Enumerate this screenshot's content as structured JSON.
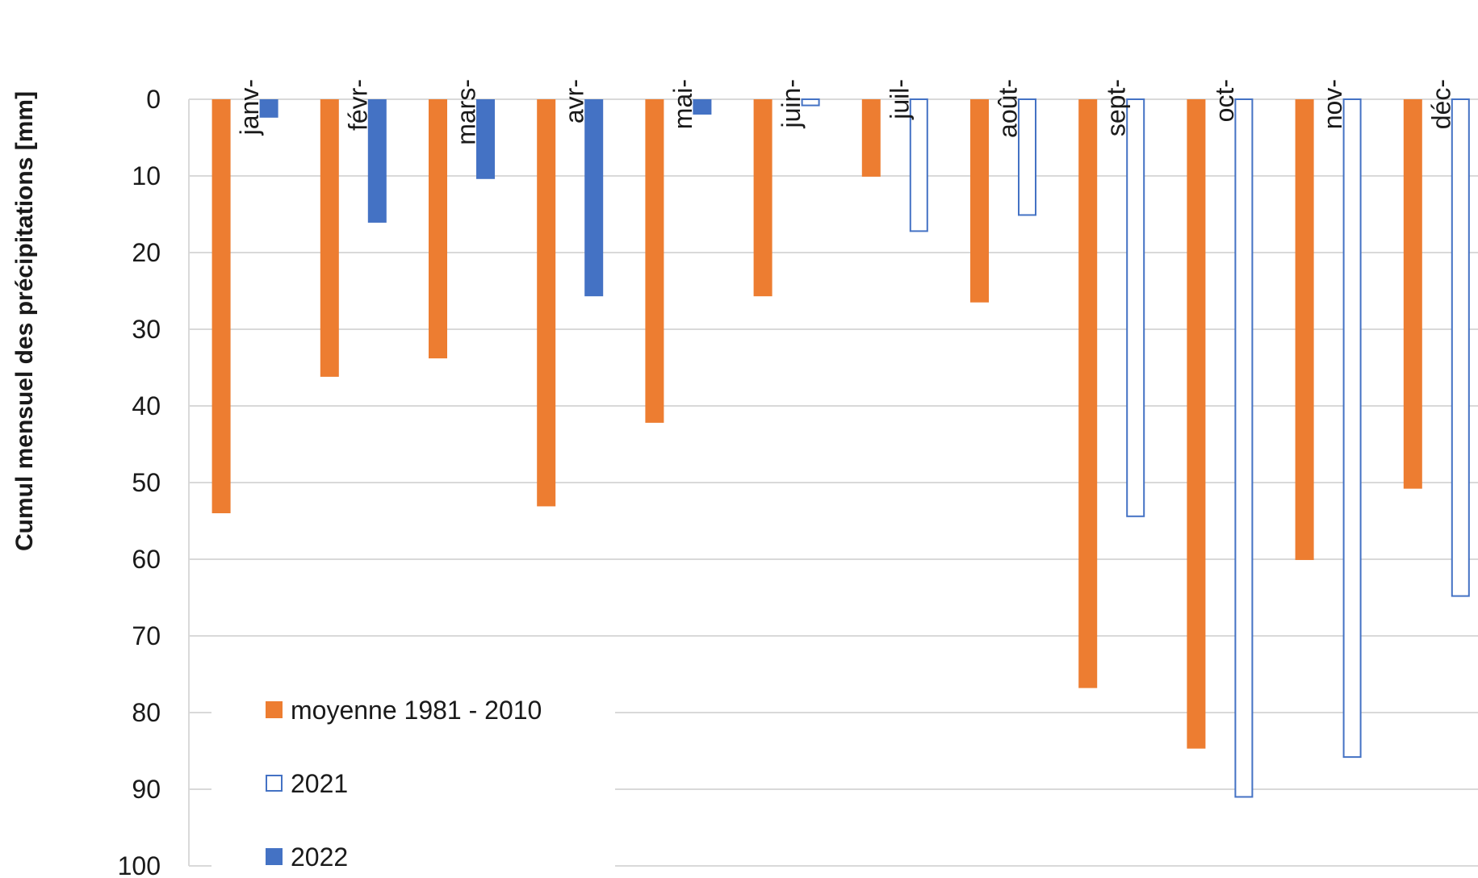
{
  "chart_data": {
    "type": "bar",
    "orientation": "vertical-inverted",
    "ylabel": "Cumul mensuel des précipitations [mm]",
    "xlabel": "",
    "title": "",
    "ylim": [
      0,
      100
    ],
    "y_ticks": [
      "0",
      "10",
      "20",
      "30",
      "40",
      "50",
      "60",
      "70",
      "80",
      "90",
      "100"
    ],
    "y_axis_inverted": true,
    "x_axis_position": "top",
    "grid": true,
    "legend_position": "bottom-left",
    "categories": [
      "janv-",
      "févr-",
      "mars-",
      "avr-",
      "mai-",
      "juin-",
      "juil-",
      "août-",
      "sept-",
      "oct-",
      "nov-",
      "déc-"
    ],
    "series": [
      {
        "name": "moyenne 1981 - 2010",
        "style": "filled",
        "color": "#ED7D31",
        "values": [
          54,
          36.2,
          33.8,
          53.1,
          42.2,
          25.7,
          10.1,
          26.5,
          76.8,
          84.7,
          60.1,
          50.8
        ]
      },
      {
        "name": "2021",
        "style": "outline",
        "color": "#4472C4",
        "values": [
          null,
          null,
          null,
          null,
          null,
          0.8,
          17.2,
          15.1,
          54.4,
          91.0,
          85.8,
          64.8
        ]
      },
      {
        "name": "2022",
        "style": "filled",
        "color": "#4472C4",
        "values": [
          2.4,
          16.1,
          10.4,
          25.7,
          2.0,
          null,
          null,
          null,
          null,
          null,
          null,
          null
        ]
      }
    ]
  }
}
